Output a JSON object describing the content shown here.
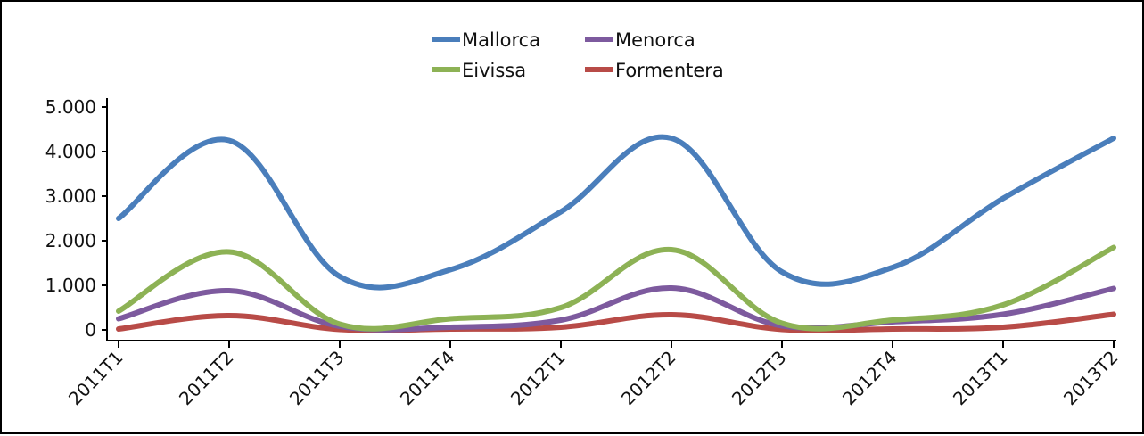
{
  "chart_data": {
    "type": "line",
    "title": "",
    "xlabel": "",
    "ylabel": "",
    "categories": [
      "2011T1",
      "2011T2",
      "2011T3",
      "2011T4",
      "2012T1",
      "2012T2",
      "2012T3",
      "2012T4",
      "2013T1",
      "2013T2"
    ],
    "y_ticks": [
      "0",
      "1.000",
      "2.000",
      "3.000",
      "4.000",
      "5.000"
    ],
    "ylim": [
      0,
      5000
    ],
    "grid": false,
    "legend_position": "top",
    "series": [
      {
        "name": "Mallorca",
        "color": "#4a7ebb",
        "values": [
          2500,
          4250,
          1200,
          1350,
          2650,
          4300,
          1300,
          1400,
          2950,
          4300
        ]
      },
      {
        "name": "Menorca",
        "color": "#7d5a9e",
        "values": [
          250,
          880,
          80,
          60,
          220,
          940,
          90,
          180,
          350,
          930
        ]
      },
      {
        "name": "Eivissa",
        "color": "#8db255",
        "values": [
          420,
          1750,
          130,
          250,
          500,
          1800,
          150,
          220,
          560,
          1850
        ]
      },
      {
        "name": "Formentera",
        "color": "#b84b47",
        "values": [
          20,
          320,
          10,
          20,
          60,
          340,
          10,
          20,
          60,
          350
        ]
      }
    ]
  }
}
